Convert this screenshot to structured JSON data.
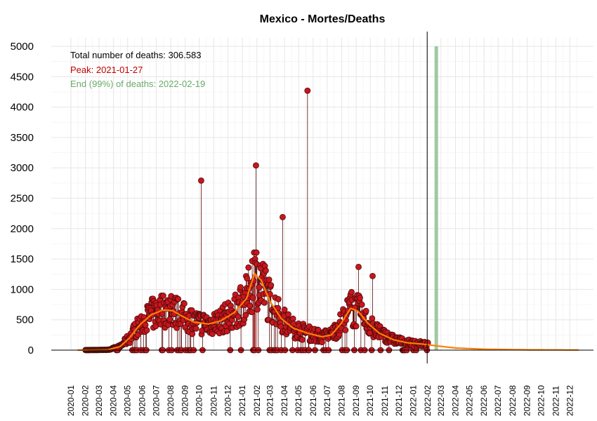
{
  "chart_data": {
    "type": "scatter",
    "title": "Mexico - Mortes/Deaths",
    "ylim": [
      0,
      5000
    ],
    "y_ticks": [
      "0",
      "500",
      "1000",
      "1500",
      "2000",
      "2500",
      "3000",
      "3500",
      "4000",
      "4500",
      "5000"
    ],
    "x_start": "2020-01",
    "x_end": "2022-12",
    "x_ticks": [
      "2020-01",
      "2020-02",
      "2020-03",
      "2020-04",
      "2020-05",
      "2020-06",
      "2020-07",
      "2020-08",
      "2020-09",
      "2020-10",
      "2020-11",
      "2020-12",
      "2021-01",
      "2021-02",
      "2021-03",
      "2021-04",
      "2021-05",
      "2021-06",
      "2021-07",
      "2021-08",
      "2021-09",
      "2021-10",
      "2021-11",
      "2021-12",
      "2022-01",
      "2022-02",
      "2022-03",
      "2022-04",
      "2022-05",
      "2022-06",
      "2022-07",
      "2022-08",
      "2022-09",
      "2022-10",
      "2022-11",
      "2022-12"
    ],
    "grid": true,
    "annotations": {
      "total": "Total number of deaths: 306.583",
      "peak": "Peak: 2021-01-27",
      "end": "End (99%) of deaths: 2022-02-19"
    },
    "peak_date": "2021-01-27",
    "end_date": "2022-02-19",
    "today_line_date": "2022-02-01",
    "colors": {
      "points": "#c8161d",
      "points_stroke": "#4a0a0a",
      "stems": "#5a0c0c",
      "smooth": "#ff7f00",
      "peak_band": "#cd5c5c",
      "end_band": "#8fbf8f",
      "annotation_total": "#000000",
      "annotation_peak": "#c00000",
      "annotation_end": "#6aab6a",
      "grid": "#e6e6e6"
    },
    "spikes": [
      {
        "date": "2020-10-05",
        "value": 2790
      },
      {
        "date": "2021-01-30",
        "value": 3040
      },
      {
        "date": "2021-03-28",
        "value": 2190
      },
      {
        "date": "2021-05-20",
        "value": 4270
      },
      {
        "date": "2021-09-06",
        "value": 1370
      },
      {
        "date": "2021-10-06",
        "value": 1220
      }
    ],
    "smooth_curve": [
      {
        "date": "2020-01-15",
        "value": 0
      },
      {
        "date": "2020-03-20",
        "value": 5
      },
      {
        "date": "2020-04-15",
        "value": 60
      },
      {
        "date": "2020-05-05",
        "value": 200
      },
      {
        "date": "2020-05-25",
        "value": 400
      },
      {
        "date": "2020-06-20",
        "value": 580
      },
      {
        "date": "2020-07-15",
        "value": 660
      },
      {
        "date": "2020-08-05",
        "value": 650
      },
      {
        "date": "2020-08-25",
        "value": 560
      },
      {
        "date": "2020-09-20",
        "value": 460
      },
      {
        "date": "2020-10-20",
        "value": 430
      },
      {
        "date": "2020-11-15",
        "value": 480
      },
      {
        "date": "2020-12-15",
        "value": 620
      },
      {
        "date": "2021-01-10",
        "value": 850
      },
      {
        "date": "2021-01-27",
        "value": 1260
      },
      {
        "date": "2021-02-10",
        "value": 1150
      },
      {
        "date": "2021-03-01",
        "value": 800
      },
      {
        "date": "2021-03-25",
        "value": 520
      },
      {
        "date": "2021-04-20",
        "value": 360
      },
      {
        "date": "2021-05-20",
        "value": 280
      },
      {
        "date": "2021-06-20",
        "value": 220
      },
      {
        "date": "2021-07-10",
        "value": 250
      },
      {
        "date": "2021-07-30",
        "value": 430
      },
      {
        "date": "2021-08-20",
        "value": 690
      },
      {
        "date": "2021-09-05",
        "value": 640
      },
      {
        "date": "2021-09-25",
        "value": 450
      },
      {
        "date": "2021-10-20",
        "value": 280
      },
      {
        "date": "2021-11-20",
        "value": 170
      },
      {
        "date": "2021-12-20",
        "value": 120
      },
      {
        "date": "2022-01-20",
        "value": 100
      },
      {
        "date": "2022-02-20",
        "value": 70
      },
      {
        "date": "2022-04-01",
        "value": 35
      },
      {
        "date": "2022-06-01",
        "value": 15
      },
      {
        "date": "2022-09-01",
        "value": 5
      },
      {
        "date": "2022-12-20",
        "value": 2
      }
    ]
  }
}
